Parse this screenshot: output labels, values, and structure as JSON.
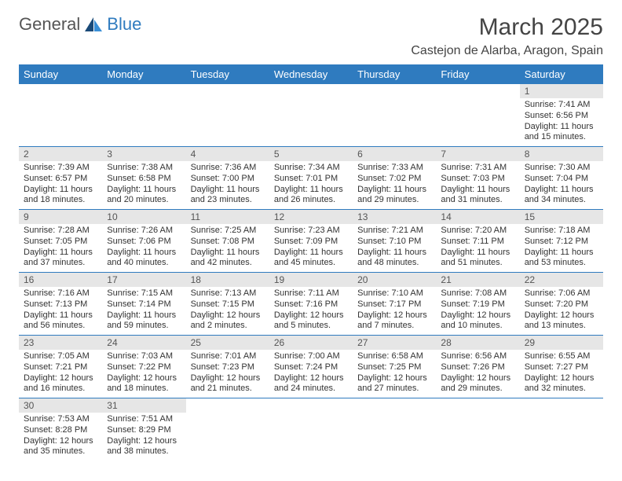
{
  "logo": {
    "general": "General",
    "blue": "Blue",
    "icon_color_dark": "#1a4a78",
    "icon_color_light": "#3a8fd6"
  },
  "title": "March 2025",
  "location": "Castejon de Alarba, Aragon, Spain",
  "colors": {
    "header_bg": "#2f7bbf",
    "header_text": "#ffffff",
    "daynum_bg": "#e6e6e6",
    "row_border": "#2f7bbf",
    "text": "#333333"
  },
  "typography": {
    "title_fontsize": 30,
    "location_fontsize": 16,
    "header_fontsize": 13,
    "cell_fontsize": 11
  },
  "weekdays": [
    "Sunday",
    "Monday",
    "Tuesday",
    "Wednesday",
    "Thursday",
    "Friday",
    "Saturday"
  ],
  "weeks": [
    [
      null,
      null,
      null,
      null,
      null,
      null,
      {
        "n": "1",
        "sunrise": "Sunrise: 7:41 AM",
        "sunset": "Sunset: 6:56 PM",
        "daylight": "Daylight: 11 hours and 15 minutes."
      }
    ],
    [
      {
        "n": "2",
        "sunrise": "Sunrise: 7:39 AM",
        "sunset": "Sunset: 6:57 PM",
        "daylight": "Daylight: 11 hours and 18 minutes."
      },
      {
        "n": "3",
        "sunrise": "Sunrise: 7:38 AM",
        "sunset": "Sunset: 6:58 PM",
        "daylight": "Daylight: 11 hours and 20 minutes."
      },
      {
        "n": "4",
        "sunrise": "Sunrise: 7:36 AM",
        "sunset": "Sunset: 7:00 PM",
        "daylight": "Daylight: 11 hours and 23 minutes."
      },
      {
        "n": "5",
        "sunrise": "Sunrise: 7:34 AM",
        "sunset": "Sunset: 7:01 PM",
        "daylight": "Daylight: 11 hours and 26 minutes."
      },
      {
        "n": "6",
        "sunrise": "Sunrise: 7:33 AM",
        "sunset": "Sunset: 7:02 PM",
        "daylight": "Daylight: 11 hours and 29 minutes."
      },
      {
        "n": "7",
        "sunrise": "Sunrise: 7:31 AM",
        "sunset": "Sunset: 7:03 PM",
        "daylight": "Daylight: 11 hours and 31 minutes."
      },
      {
        "n": "8",
        "sunrise": "Sunrise: 7:30 AM",
        "sunset": "Sunset: 7:04 PM",
        "daylight": "Daylight: 11 hours and 34 minutes."
      }
    ],
    [
      {
        "n": "9",
        "sunrise": "Sunrise: 7:28 AM",
        "sunset": "Sunset: 7:05 PM",
        "daylight": "Daylight: 11 hours and 37 minutes."
      },
      {
        "n": "10",
        "sunrise": "Sunrise: 7:26 AM",
        "sunset": "Sunset: 7:06 PM",
        "daylight": "Daylight: 11 hours and 40 minutes."
      },
      {
        "n": "11",
        "sunrise": "Sunrise: 7:25 AM",
        "sunset": "Sunset: 7:08 PM",
        "daylight": "Daylight: 11 hours and 42 minutes."
      },
      {
        "n": "12",
        "sunrise": "Sunrise: 7:23 AM",
        "sunset": "Sunset: 7:09 PM",
        "daylight": "Daylight: 11 hours and 45 minutes."
      },
      {
        "n": "13",
        "sunrise": "Sunrise: 7:21 AM",
        "sunset": "Sunset: 7:10 PM",
        "daylight": "Daylight: 11 hours and 48 minutes."
      },
      {
        "n": "14",
        "sunrise": "Sunrise: 7:20 AM",
        "sunset": "Sunset: 7:11 PM",
        "daylight": "Daylight: 11 hours and 51 minutes."
      },
      {
        "n": "15",
        "sunrise": "Sunrise: 7:18 AM",
        "sunset": "Sunset: 7:12 PM",
        "daylight": "Daylight: 11 hours and 53 minutes."
      }
    ],
    [
      {
        "n": "16",
        "sunrise": "Sunrise: 7:16 AM",
        "sunset": "Sunset: 7:13 PM",
        "daylight": "Daylight: 11 hours and 56 minutes."
      },
      {
        "n": "17",
        "sunrise": "Sunrise: 7:15 AM",
        "sunset": "Sunset: 7:14 PM",
        "daylight": "Daylight: 11 hours and 59 minutes."
      },
      {
        "n": "18",
        "sunrise": "Sunrise: 7:13 AM",
        "sunset": "Sunset: 7:15 PM",
        "daylight": "Daylight: 12 hours and 2 minutes."
      },
      {
        "n": "19",
        "sunrise": "Sunrise: 7:11 AM",
        "sunset": "Sunset: 7:16 PM",
        "daylight": "Daylight: 12 hours and 5 minutes."
      },
      {
        "n": "20",
        "sunrise": "Sunrise: 7:10 AM",
        "sunset": "Sunset: 7:17 PM",
        "daylight": "Daylight: 12 hours and 7 minutes."
      },
      {
        "n": "21",
        "sunrise": "Sunrise: 7:08 AM",
        "sunset": "Sunset: 7:19 PM",
        "daylight": "Daylight: 12 hours and 10 minutes."
      },
      {
        "n": "22",
        "sunrise": "Sunrise: 7:06 AM",
        "sunset": "Sunset: 7:20 PM",
        "daylight": "Daylight: 12 hours and 13 minutes."
      }
    ],
    [
      {
        "n": "23",
        "sunrise": "Sunrise: 7:05 AM",
        "sunset": "Sunset: 7:21 PM",
        "daylight": "Daylight: 12 hours and 16 minutes."
      },
      {
        "n": "24",
        "sunrise": "Sunrise: 7:03 AM",
        "sunset": "Sunset: 7:22 PM",
        "daylight": "Daylight: 12 hours and 18 minutes."
      },
      {
        "n": "25",
        "sunrise": "Sunrise: 7:01 AM",
        "sunset": "Sunset: 7:23 PM",
        "daylight": "Daylight: 12 hours and 21 minutes."
      },
      {
        "n": "26",
        "sunrise": "Sunrise: 7:00 AM",
        "sunset": "Sunset: 7:24 PM",
        "daylight": "Daylight: 12 hours and 24 minutes."
      },
      {
        "n": "27",
        "sunrise": "Sunrise: 6:58 AM",
        "sunset": "Sunset: 7:25 PM",
        "daylight": "Daylight: 12 hours and 27 minutes."
      },
      {
        "n": "28",
        "sunrise": "Sunrise: 6:56 AM",
        "sunset": "Sunset: 7:26 PM",
        "daylight": "Daylight: 12 hours and 29 minutes."
      },
      {
        "n": "29",
        "sunrise": "Sunrise: 6:55 AM",
        "sunset": "Sunset: 7:27 PM",
        "daylight": "Daylight: 12 hours and 32 minutes."
      }
    ],
    [
      {
        "n": "30",
        "sunrise": "Sunrise: 7:53 AM",
        "sunset": "Sunset: 8:28 PM",
        "daylight": "Daylight: 12 hours and 35 minutes."
      },
      {
        "n": "31",
        "sunrise": "Sunrise: 7:51 AM",
        "sunset": "Sunset: 8:29 PM",
        "daylight": "Daylight: 12 hours and 38 minutes."
      },
      null,
      null,
      null,
      null,
      null
    ]
  ]
}
